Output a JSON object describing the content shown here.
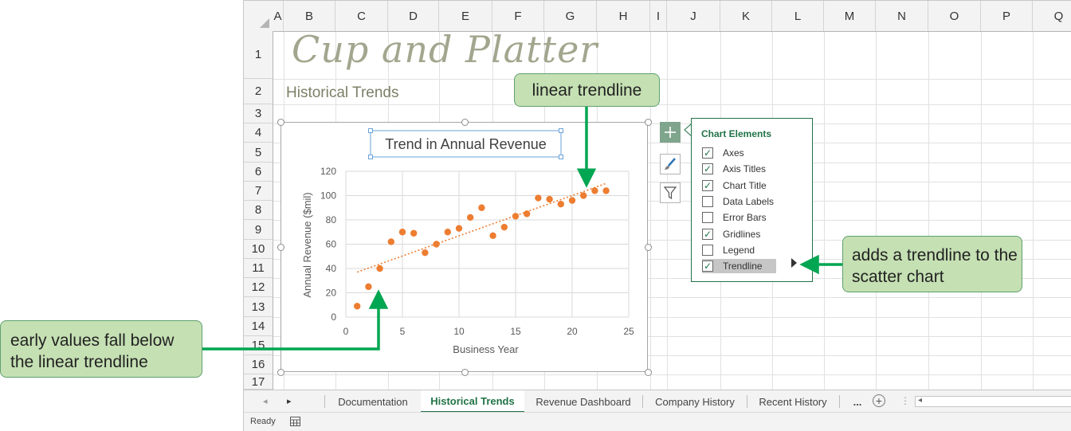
{
  "workbook_title": "Cup and Platter",
  "subtitle": "Historical Trends",
  "columns": [
    "A",
    "B",
    "C",
    "D",
    "E",
    "F",
    "G",
    "H",
    "I",
    "J",
    "K",
    "L",
    "M",
    "N",
    "O",
    "P",
    "Q"
  ],
  "rows": [
    "1",
    "2",
    "3",
    "4",
    "5",
    "6",
    "7",
    "8",
    "9",
    "10",
    "11",
    "12",
    "13",
    "14",
    "15",
    "16",
    "17"
  ],
  "chart_data": {
    "type": "scatter",
    "title": "Trend in Annual Revenue",
    "xlabel": "Business Year",
    "ylabel": "Annual Revenue ($mil)",
    "xlim": [
      0,
      25
    ],
    "ylim": [
      0,
      120
    ],
    "xticks": [
      0,
      5,
      10,
      15,
      20,
      25
    ],
    "yticks": [
      0,
      20,
      40,
      60,
      80,
      100,
      120
    ],
    "gridlines": true,
    "marker_color": "#ED7D31",
    "points": [
      {
        "x": 1,
        "y": 9
      },
      {
        "x": 2,
        "y": 25
      },
      {
        "x": 3,
        "y": 40
      },
      {
        "x": 4,
        "y": 62
      },
      {
        "x": 5,
        "y": 70
      },
      {
        "x": 6,
        "y": 69
      },
      {
        "x": 7,
        "y": 53
      },
      {
        "x": 8,
        "y": 60
      },
      {
        "x": 9,
        "y": 70
      },
      {
        "x": 10,
        "y": 73
      },
      {
        "x": 11,
        "y": 82
      },
      {
        "x": 12,
        "y": 90
      },
      {
        "x": 13,
        "y": 67
      },
      {
        "x": 14,
        "y": 74
      },
      {
        "x": 15,
        "y": 83
      },
      {
        "x": 16,
        "y": 85
      },
      {
        "x": 17,
        "y": 98
      },
      {
        "x": 18,
        "y": 97
      },
      {
        "x": 19,
        "y": 93
      },
      {
        "x": 20,
        "y": 96
      },
      {
        "x": 21,
        "y": 100
      },
      {
        "x": 22,
        "y": 104
      },
      {
        "x": 23,
        "y": 104
      }
    ],
    "trendline": {
      "type": "linear",
      "x0": 1,
      "y0": 37,
      "x1": 23,
      "y1": 110
    }
  },
  "chart_elements": {
    "title": "Chart Elements",
    "items": [
      {
        "label": "Axes",
        "checked": true
      },
      {
        "label": "Axis Titles",
        "checked": true
      },
      {
        "label": "Chart Title",
        "checked": true
      },
      {
        "label": "Data Labels",
        "checked": false
      },
      {
        "label": "Error Bars",
        "checked": false
      },
      {
        "label": "Gridlines",
        "checked": true
      },
      {
        "label": "Legend",
        "checked": false
      },
      {
        "label": "Trendline",
        "checked": true
      }
    ]
  },
  "callouts": {
    "trendline": "linear trendline",
    "adds": "adds a trendline to the scatter chart",
    "early": "early values fall below the linear trendline"
  },
  "sheet_tabs": {
    "tabs": [
      "Documentation",
      "Historical Trends",
      "Revenue Dashboard",
      "Company History",
      "Recent History"
    ],
    "active": "Historical Trends",
    "more": "..."
  },
  "status": {
    "ready": "Ready"
  },
  "colors": {
    "accent": "#217346",
    "marker": "#ED7D31",
    "callout_fill": "#C5E0B3",
    "arrow": "#00A651"
  }
}
